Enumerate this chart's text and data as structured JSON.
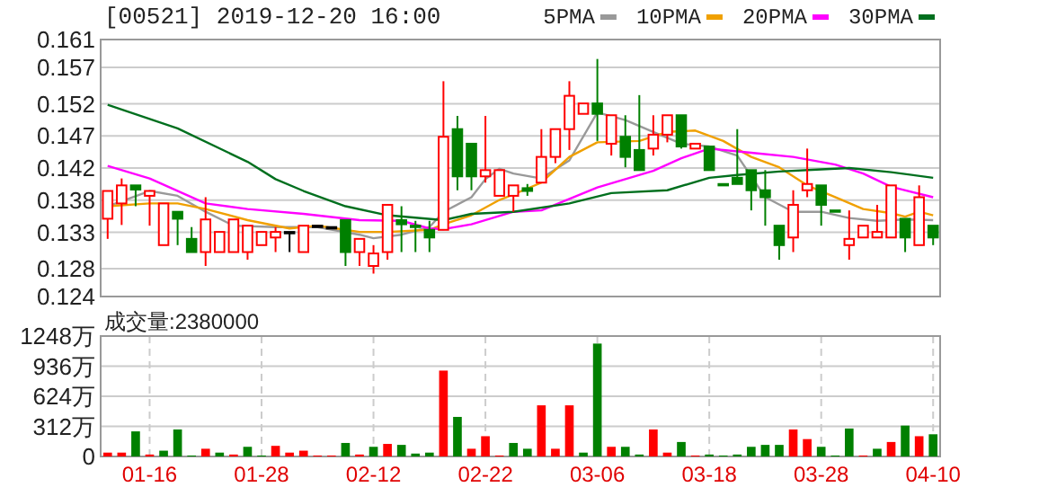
{
  "chart_data": [
    {
      "type": "candlestick",
      "title": "[00521] 2019-12-20 16:00",
      "categories": [
        null,
        null,
        null,
        null,
        null,
        null,
        null,
        null,
        null,
        null,
        null,
        null,
        null,
        null,
        null,
        null,
        null,
        null,
        null,
        null,
        null,
        null,
        null,
        null,
        null,
        null,
        null,
        null,
        null,
        null,
        null,
        null,
        null,
        null,
        null,
        null,
        null,
        null,
        null,
        null,
        null,
        null,
        null,
        null,
        null,
        null,
        null,
        null,
        null,
        null,
        null,
        null,
        null,
        null,
        null,
        null,
        null,
        null,
        null,
        null
      ],
      "tick_labels": "y",
      "grid": "y",
      "legend": "top right",
      "ylim": [
        0.124,
        0.161
      ],
      "yticks": [
        0.124,
        0.128,
        {
          "value": 0.13325,
          "label": "0.133"
        },
        {
          "value": 0.137875,
          "label": "0.138"
        },
        {
          "value": 0.1425,
          "label": "0.142"
        },
        {
          "value": 0.147125,
          "label": "0.147"
        },
        {
          "value": 0.15175,
          "label": "0.152"
        },
        0.157,
        0.161
      ],
      "ohlc": [
        [
          0.1352,
          0.1392,
          0.1323,
          0.1392
        ],
        [
          0.1374,
          0.141,
          0.1343,
          0.14
        ],
        [
          0.14,
          0.14,
          0.137,
          0.1394
        ],
        [
          0.1385,
          0.1392,
          0.1342,
          0.1392
        ],
        [
          0.1314,
          0.1374,
          0.1314,
          0.1374
        ],
        [
          0.1362,
          0.1362,
          0.1314,
          0.1352
        ],
        [
          0.1323,
          0.134,
          0.1304,
          0.1304
        ],
        [
          0.1304,
          0.1383,
          0.1284,
          0.1351
        ],
        [
          0.1304,
          0.1333,
          0.1304,
          0.1333
        ],
        [
          0.1304,
          0.1351,
          0.1304,
          0.1351
        ],
        [
          0.1304,
          0.1342,
          0.1293,
          0.1342
        ],
        [
          0.1314,
          0.1333,
          0.1314,
          0.1333
        ],
        [
          0.1325,
          0.134,
          0.1304,
          0.1333
        ],
        [
          0.1333,
          0.1333,
          0.1304,
          0.1333
        ],
        [
          0.1304,
          0.1342,
          0.1304,
          0.1342
        ],
        [
          0.1342,
          0.1342,
          0.1342,
          0.1342
        ],
        [
          0.134,
          0.134,
          0.134,
          0.134
        ],
        [
          0.135,
          0.135,
          0.1284,
          0.1304
        ],
        [
          0.1304,
          0.1323,
          0.1284,
          0.1323
        ],
        [
          0.1284,
          0.1314,
          0.1273,
          0.1302
        ],
        [
          0.1304,
          0.1372,
          0.1293,
          0.1372
        ],
        [
          0.135,
          0.137,
          0.1304,
          0.1344
        ],
        [
          0.1342,
          0.1349,
          0.1304,
          0.134
        ],
        [
          0.1336,
          0.1349,
          0.1304,
          0.1325
        ],
        [
          0.1336,
          0.155,
          0.1336,
          0.147
        ],
        [
          0.1481,
          0.15,
          0.1393,
          0.1413
        ],
        [
          0.146,
          0.146,
          0.1393,
          0.1413
        ],
        [
          0.1413,
          0.15,
          0.1404,
          0.1422
        ],
        [
          0.1385,
          0.1422,
          0.1385,
          0.1422
        ],
        [
          0.1385,
          0.14,
          0.1362,
          0.14
        ],
        [
          0.1396,
          0.1402,
          0.1385,
          0.1392
        ],
        [
          0.1404,
          0.1481,
          0.1404,
          0.1441
        ],
        [
          0.1441,
          0.1481,
          0.1432,
          0.1481
        ],
        [
          0.1481,
          0.155,
          0.1451,
          0.1529
        ],
        [
          0.1503,
          0.1518,
          0.1503,
          0.1518
        ],
        [
          0.1518,
          0.1582,
          0.1464,
          0.1503
        ],
        [
          0.146,
          0.1501,
          0.1443,
          0.1501
        ],
        [
          0.147,
          0.1501,
          0.1426,
          0.1441
        ],
        [
          0.1451,
          0.153,
          0.1422,
          0.1422
        ],
        [
          0.1453,
          0.1501,
          0.1443,
          0.1473
        ],
        [
          0.1473,
          0.1501,
          0.1462,
          0.1501
        ],
        [
          0.1501,
          0.1501,
          0.1453,
          0.1456
        ],
        [
          0.1453,
          0.146,
          0.1453,
          0.146
        ],
        [
          0.1456,
          0.1456,
          0.1422,
          0.1422
        ],
        [
          0.1402,
          0.1402,
          0.14,
          0.14
        ],
        [
          0.1411,
          0.1481,
          0.1402,
          0.1402
        ],
        [
          0.1422,
          0.1422,
          0.1364,
          0.1393
        ],
        [
          0.1393,
          0.1422,
          0.1342,
          0.1383
        ],
        [
          0.1342,
          0.1342,
          0.1293,
          0.1314
        ],
        [
          0.1325,
          0.1393,
          0.1304,
          0.1372
        ],
        [
          0.1393,
          0.1453,
          0.1383,
          0.1402
        ],
        [
          0.14,
          0.14,
          0.1342,
          0.1372
        ],
        [
          0.1364,
          0.1364,
          0.1363,
          0.1363
        ],
        [
          0.1314,
          0.1364,
          0.1293,
          0.1323
        ],
        [
          0.1325,
          0.1342,
          0.1325,
          0.1342
        ],
        [
          0.1325,
          0.1372,
          0.1325,
          0.1333
        ],
        [
          0.1325,
          0.14,
          0.1325,
          0.14
        ],
        [
          0.1352,
          0.1352,
          0.1304,
          0.1325
        ],
        [
          0.1314,
          0.14,
          0.1314,
          0.1383
        ],
        [
          0.1342,
          0.1342,
          0.1314,
          0.1325
        ]
      ],
      "colors": [
        "#ff0000",
        "#ff0000",
        "#008000",
        "#ff0000",
        "#ff0000",
        "#008000",
        "#008000",
        "#ff0000",
        "#ff0000",
        "#ff0000",
        "#ff0000",
        "#ff0000",
        "#ff0000",
        "#000000",
        "#ff0000",
        "#000000",
        "#000000",
        "#008000",
        "#ff0000",
        "#ff0000",
        "#ff0000",
        "#008000",
        "#008000",
        "#008000",
        "#ff0000",
        "#008000",
        "#008000",
        "#ff0000",
        "#ff0000",
        "#ff0000",
        "#008000",
        "#ff0000",
        "#ff0000",
        "#ff0000",
        "#ff0000",
        "#008000",
        "#ff0000",
        "#008000",
        "#008000",
        "#ff0000",
        "#ff0000",
        "#008000",
        "#ff0000",
        "#008000",
        "#008000",
        "#008000",
        "#008000",
        "#008000",
        "#008000",
        "#ff0000",
        "#ff0000",
        "#008000",
        "#008000",
        "#ff0000",
        "#ff0000",
        "#ff0000",
        "#ff0000",
        "#008000",
        "#ff0000",
        "#008000"
      ],
      "series": [
        {
          "type": "line",
          "name": "5PMA",
          "color": "#999999",
          "values": [
            0.137,
            null,
            null,
            0.1392,
            null,
            0.1385,
            null,
            0.1362,
            null,
            0.1342,
            null,
            null,
            0.134,
            null,
            null,
            0.134,
            null,
            null,
            0.1329,
            0.1324,
            null,
            0.1329,
            null,
            0.134,
            0.1362,
            null,
            0.1383,
            0.1409,
            0.1424,
            0.1417,
            null,
            0.141,
            null,
            0.1436,
            null,
            0.1505,
            null,
            0.1494,
            null,
            0.1477,
            null,
            0.146,
            null,
            0.1456,
            null,
            0.1443,
            null,
            0.1383,
            null,
            0.1362,
            null,
            0.1362,
            null,
            0.1353,
            null,
            0.1349,
            null,
            0.1351,
            null,
            0.135
          ]
        },
        {
          "type": "line",
          "name": "10PMA",
          "color": "#f0a000",
          "values": [
            0.137,
            null,
            null,
            0.1374,
            null,
            0.1374,
            null,
            0.1366,
            null,
            null,
            0.135,
            null,
            null,
            0.1338,
            null,
            0.1342,
            null,
            null,
            0.1333,
            null,
            0.1333,
            null,
            null,
            0.1336,
            0.1344,
            null,
            0.1357,
            null,
            0.1379,
            0.1387,
            null,
            0.1404,
            null,
            0.1441,
            null,
            0.1462,
            null,
            null,
            0.1464,
            null,
            0.1477,
            null,
            0.1479,
            null,
            0.1464,
            null,
            0.1441,
            null,
            0.1426,
            null,
            0.14,
            null,
            0.1383,
            null,
            0.1366,
            null,
            0.136,
            0.1355,
            0.1362,
            0.1357
          ]
        },
        {
          "type": "line",
          "name": "20PMA",
          "color": "#ff00ff",
          "values": [
            0.1428,
            null,
            null,
            0.141,
            null,
            null,
            null,
            0.1374,
            null,
            null,
            0.1366,
            null,
            null,
            null,
            0.1359,
            null,
            null,
            null,
            0.135,
            null,
            null,
            0.1349,
            null,
            0.1338,
            0.1337,
            null,
            0.1344,
            null,
            null,
            0.1362,
            null,
            0.1364,
            null,
            null,
            null,
            0.1397,
            null,
            null,
            null,
            0.1421,
            null,
            0.1439,
            null,
            0.1453,
            null,
            null,
            0.1447,
            null,
            null,
            0.1441,
            null,
            null,
            0.143,
            null,
            0.1417,
            null,
            0.1398,
            null,
            null,
            0.1383
          ]
        },
        {
          "type": "line",
          "name": "30PMA",
          "color": "#006f1e",
          "values": [
            0.1516,
            null,
            null,
            null,
            null,
            0.1482,
            null,
            null,
            null,
            null,
            0.1434,
            null,
            0.1409,
            null,
            0.1392,
            null,
            null,
            0.137,
            null,
            null,
            0.1357,
            null,
            null,
            null,
            0.135,
            null,
            0.1359,
            null,
            null,
            0.1362,
            null,
            null,
            null,
            0.1374,
            null,
            null,
            0.1389,
            null,
            null,
            null,
            0.1393,
            null,
            null,
            0.1411,
            null,
            0.1415,
            null,
            null,
            0.142,
            null,
            null,
            0.1423,
            null,
            0.1425,
            null,
            null,
            0.1419,
            null,
            null,
            0.1411
          ]
        }
      ]
    },
    {
      "type": "bar",
      "annotations": [
        "成交量:2380000"
      ],
      "categories": [
        null,
        null,
        null,
        "01-16",
        null,
        null,
        null,
        null,
        null,
        null,
        null,
        "01-28",
        null,
        null,
        null,
        null,
        null,
        null,
        null,
        "02-12",
        null,
        null,
        null,
        null,
        null,
        null,
        null,
        "02-22",
        null,
        null,
        null,
        null,
        null,
        null,
        null,
        "03-06",
        null,
        null,
        null,
        null,
        null,
        null,
        null,
        "03-18",
        null,
        null,
        null,
        null,
        null,
        null,
        null,
        "03-28",
        null,
        null,
        null,
        null,
        null,
        null,
        null,
        "04-10"
      ],
      "grid": true,
      "ylim": [
        0,
        1248
      ],
      "yticks": [
        0,
        {
          "value": 312,
          "label": "312万"
        },
        {
          "value": 624,
          "label": "624万"
        },
        {
          "value": 936,
          "label": "936万"
        },
        {
          "value": 1248,
          "label": "1248万"
        }
      ],
      "values": [
        40,
        40,
        260,
        20,
        60,
        280,
        10,
        80,
        40,
        20,
        100,
        10,
        110,
        40,
        60,
        10,
        10,
        140,
        20,
        100,
        130,
        120,
        30,
        40,
        890,
        410,
        80,
        210,
        10,
        140,
        80,
        530,
        80,
        530,
        40,
        1170,
        100,
        100,
        20,
        280,
        40,
        150,
        10,
        20,
        10,
        20,
        100,
        120,
        120,
        280,
        180,
        100,
        10,
        290,
        10,
        80,
        150,
        320,
        210,
        230
      ],
      "colors": [
        "#ff0000",
        "#ff0000",
        "#008000",
        "#ff0000",
        "#008000",
        "#008000",
        "#008000",
        "#ff0000",
        "#008000",
        "#ff0000",
        "#008000",
        "#008000",
        "#ff0000",
        "#ff0000",
        "#ff0000",
        "#ff0000",
        "#ff0000",
        "#008000",
        "#ff0000",
        "#008000",
        "#ff0000",
        "#008000",
        "#008000",
        "#008000",
        "#ff0000",
        "#008000",
        "#ff0000",
        "#ff0000",
        "#ff0000",
        "#008000",
        "#008000",
        "#ff0000",
        "#ff0000",
        "#ff0000",
        "#008000",
        "#008000",
        "#ff0000",
        "#008000",
        "#008000",
        "#ff0000",
        "#ff0000",
        "#008000",
        "#ff0000",
        "#008000",
        "#008000",
        "#008000",
        "#008000",
        "#008000",
        "#008000",
        "#ff0000",
        "#ff0000",
        "#008000",
        "#008000",
        "#008000",
        "#ff0000",
        "#008000",
        "#ff0000",
        "#008000",
        "#ff0000",
        "#008000"
      ]
    }
  ]
}
